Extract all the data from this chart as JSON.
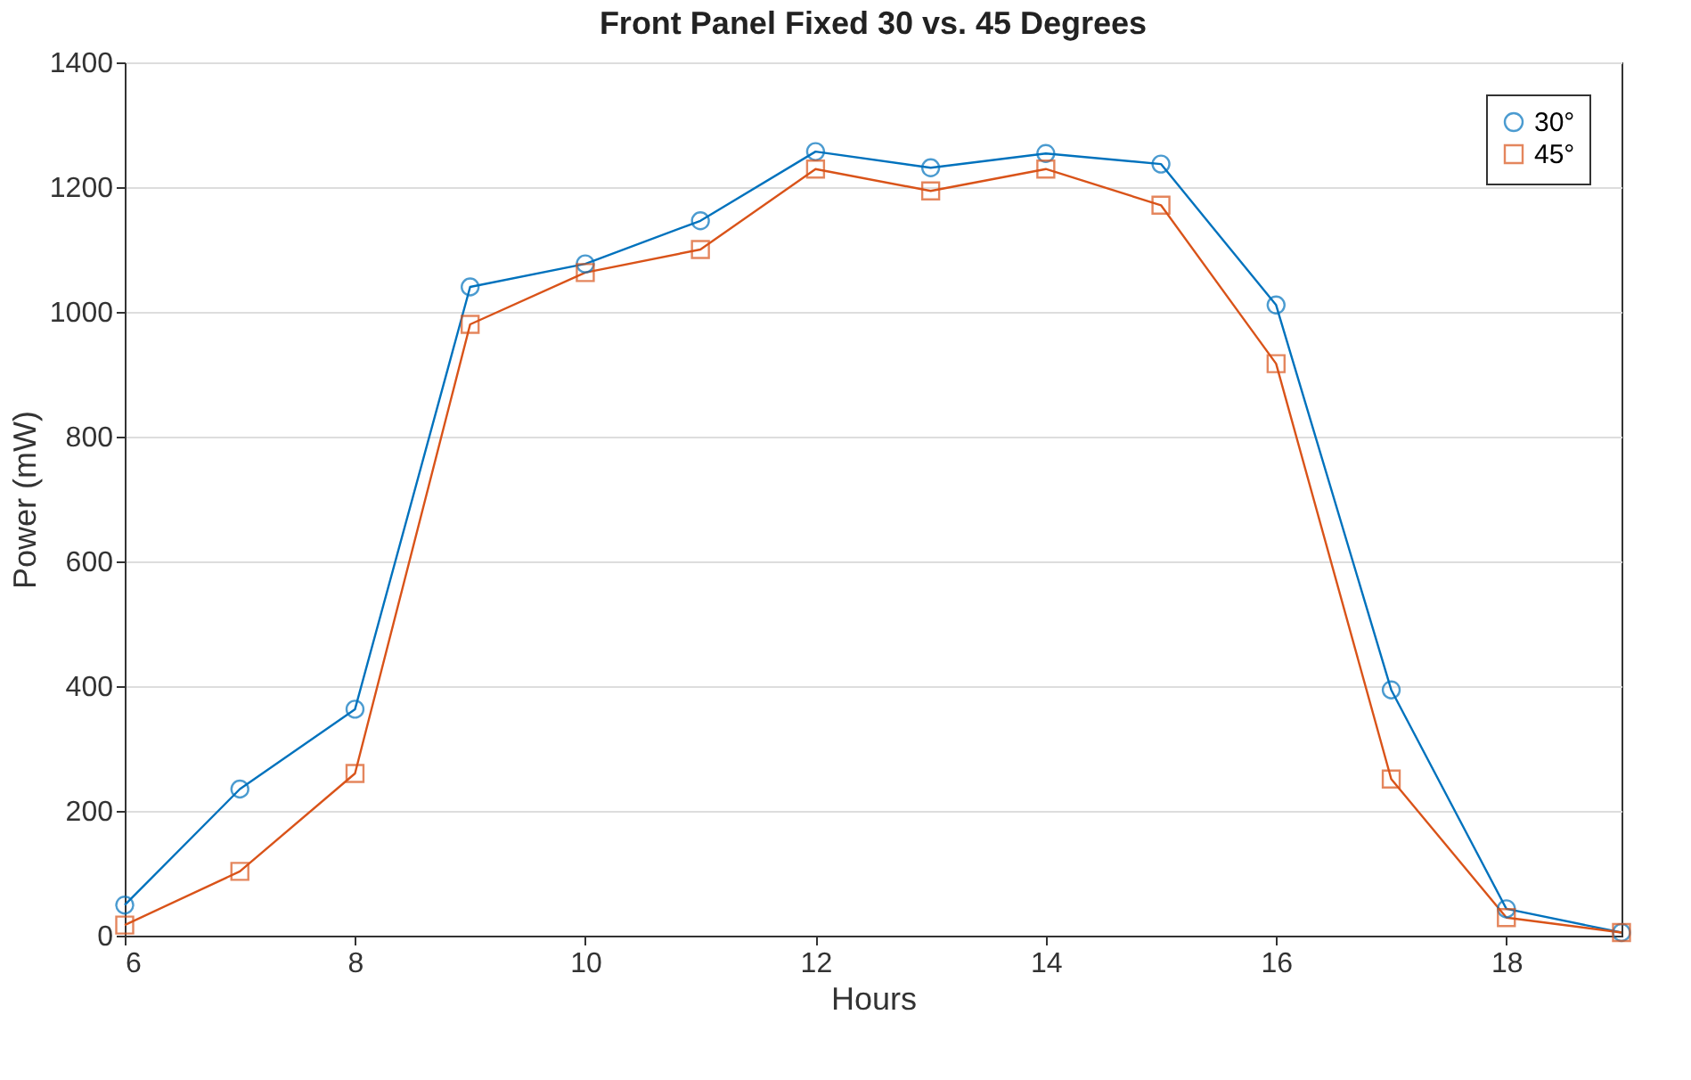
{
  "chart_data": {
    "type": "line",
    "title": "Front Panel Fixed 30 vs. 45 Degrees",
    "xlabel": "Hours",
    "ylabel": "Power (mW)",
    "x": [
      6,
      7,
      8,
      9,
      10,
      11,
      12,
      13,
      14,
      15,
      16,
      17,
      18,
      19
    ],
    "series": [
      {
        "name": "30°",
        "color": "#0072bd",
        "marker": "circle",
        "values": [
          49,
          235,
          363,
          1040,
          1077,
          1146,
          1257,
          1231,
          1254,
          1237,
          1011,
          394,
          43,
          5
        ]
      },
      {
        "name": "45°",
        "color": "#d95319",
        "marker": "square",
        "values": [
          17,
          103,
          260,
          980,
          1063,
          1100,
          1229,
          1194,
          1229,
          1171,
          917,
          251,
          29,
          5
        ]
      }
    ],
    "xlim": [
      6,
      19
    ],
    "xticks": [
      6,
      8,
      10,
      12,
      14,
      16,
      18
    ],
    "ylim": [
      0,
      1400
    ],
    "yticks": [
      0,
      200,
      400,
      600,
      800,
      1000,
      1200,
      1400
    ],
    "grid": "y",
    "legend": "top right"
  }
}
